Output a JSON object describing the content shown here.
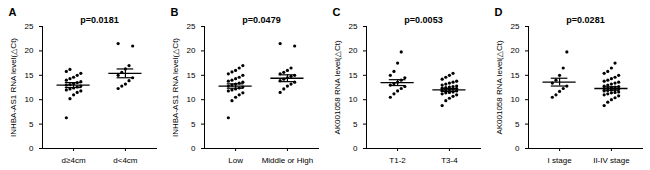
{
  "chart_data": [
    {
      "type": "scatter",
      "title": "A",
      "annotation": "p=0.0181",
      "ylabel": "INHBA-AS1 RNA level(△Ct)",
      "categories": [
        "d≥4cm",
        "d<4cm"
      ],
      "values": [
        [
          6.3,
          10.2,
          11.0,
          11.5,
          11.8,
          12.0,
          12.2,
          12.4,
          12.6,
          12.8,
          13.0,
          13.1,
          13.3,
          13.5,
          13.7,
          14.0,
          14.3,
          14.6,
          15.0,
          15.4,
          15.8,
          16.2
        ],
        [
          12.3,
          12.8,
          13.2,
          13.9,
          14.5,
          15.0,
          15.6,
          16.3,
          17.0,
          21.0,
          21.5
        ]
      ],
      "mean": [
        13.0,
        15.4
      ],
      "sem": [
        0.5,
        0.9
      ],
      "color": "#000000",
      "marker": "circle",
      "ylim": [
        0,
        25
      ],
      "yticks": [
        0,
        5,
        10,
        15,
        20,
        25
      ]
    },
    {
      "type": "scatter",
      "title": "B",
      "annotation": "p=0.0479",
      "ylabel": "INHBA-AS1 RNA level(△Ct)",
      "categories": [
        "Low",
        "Middle or High"
      ],
      "values": [
        [
          6.3,
          9.8,
          10.5,
          11.0,
          11.4,
          11.8,
          12.0,
          12.2,
          12.4,
          12.6,
          12.8,
          13.0,
          13.2,
          13.4,
          13.6,
          13.8,
          14.0,
          14.3,
          14.6,
          15.0,
          15.3,
          15.7,
          16.0,
          16.5,
          17.0
        ],
        [
          11.5,
          12.2,
          12.8,
          13.2,
          13.6,
          13.9,
          14.2,
          14.5,
          14.8,
          15.0,
          15.3,
          15.6,
          16.0,
          16.5,
          21.0,
          21.5
        ]
      ],
      "mean": [
        12.8,
        14.4
      ],
      "sem": [
        0.45,
        0.7
      ],
      "color": "#000000",
      "marker": "circle",
      "ylim": [
        0,
        25
      ],
      "yticks": [
        0,
        5,
        10,
        15,
        20,
        25
      ]
    },
    {
      "type": "scatter",
      "title": "C",
      "annotation": "p=0.0053",
      "ylabel": "AK001058 RNA level(△Ct)",
      "categories": [
        "T1-2",
        "T3-4"
      ],
      "values": [
        [
          10.5,
          11.2,
          11.8,
          12.3,
          12.7,
          13.0,
          13.3,
          13.6,
          14.0,
          14.5,
          15.0,
          15.8,
          17.5,
          19.8
        ],
        [
          8.8,
          9.8,
          10.3,
          10.7,
          11.0,
          11.2,
          11.4,
          11.5,
          11.6,
          11.8,
          11.9,
          12.0,
          12.1,
          12.2,
          12.3,
          12.4,
          12.5,
          12.6,
          12.7,
          12.8,
          13.0,
          13.2,
          13.4,
          13.6,
          13.8,
          14.2,
          14.6,
          15.0,
          15.4
        ]
      ],
      "mean": [
        13.5,
        12.0
      ],
      "sem": [
        0.6,
        0.3
      ],
      "color": "#000000",
      "marker": "circle",
      "ylim": [
        0,
        25
      ],
      "yticks": [
        0,
        5,
        10,
        15,
        20,
        25
      ]
    },
    {
      "type": "scatter",
      "title": "D",
      "annotation": "p=0.0281",
      "ylabel": "AK001058 RNA level(△Ct)",
      "categories": [
        "I stage",
        "II-IV stage"
      ],
      "values": [
        [
          10.5,
          11.0,
          11.7,
          12.3,
          12.8,
          13.4,
          14.0,
          15.0,
          16.5,
          19.8
        ],
        [
          8.8,
          9.5,
          10.0,
          10.4,
          10.8,
          11.0,
          11.2,
          11.4,
          11.5,
          11.6,
          11.8,
          11.9,
          12.0,
          12.1,
          12.2,
          12.3,
          12.4,
          12.5,
          12.6,
          12.7,
          12.8,
          13.0,
          13.2,
          13.4,
          13.6,
          13.8,
          14.0,
          14.3,
          14.6,
          15.0,
          15.4,
          15.8,
          16.5,
          17.5
        ]
      ],
      "mean": [
        13.6,
        12.3
      ],
      "sem": [
        0.8,
        0.35
      ],
      "color": "#000000",
      "marker": "circle",
      "ylim": [
        0,
        25
      ],
      "yticks": [
        0,
        5,
        10,
        15,
        20,
        25
      ]
    }
  ]
}
